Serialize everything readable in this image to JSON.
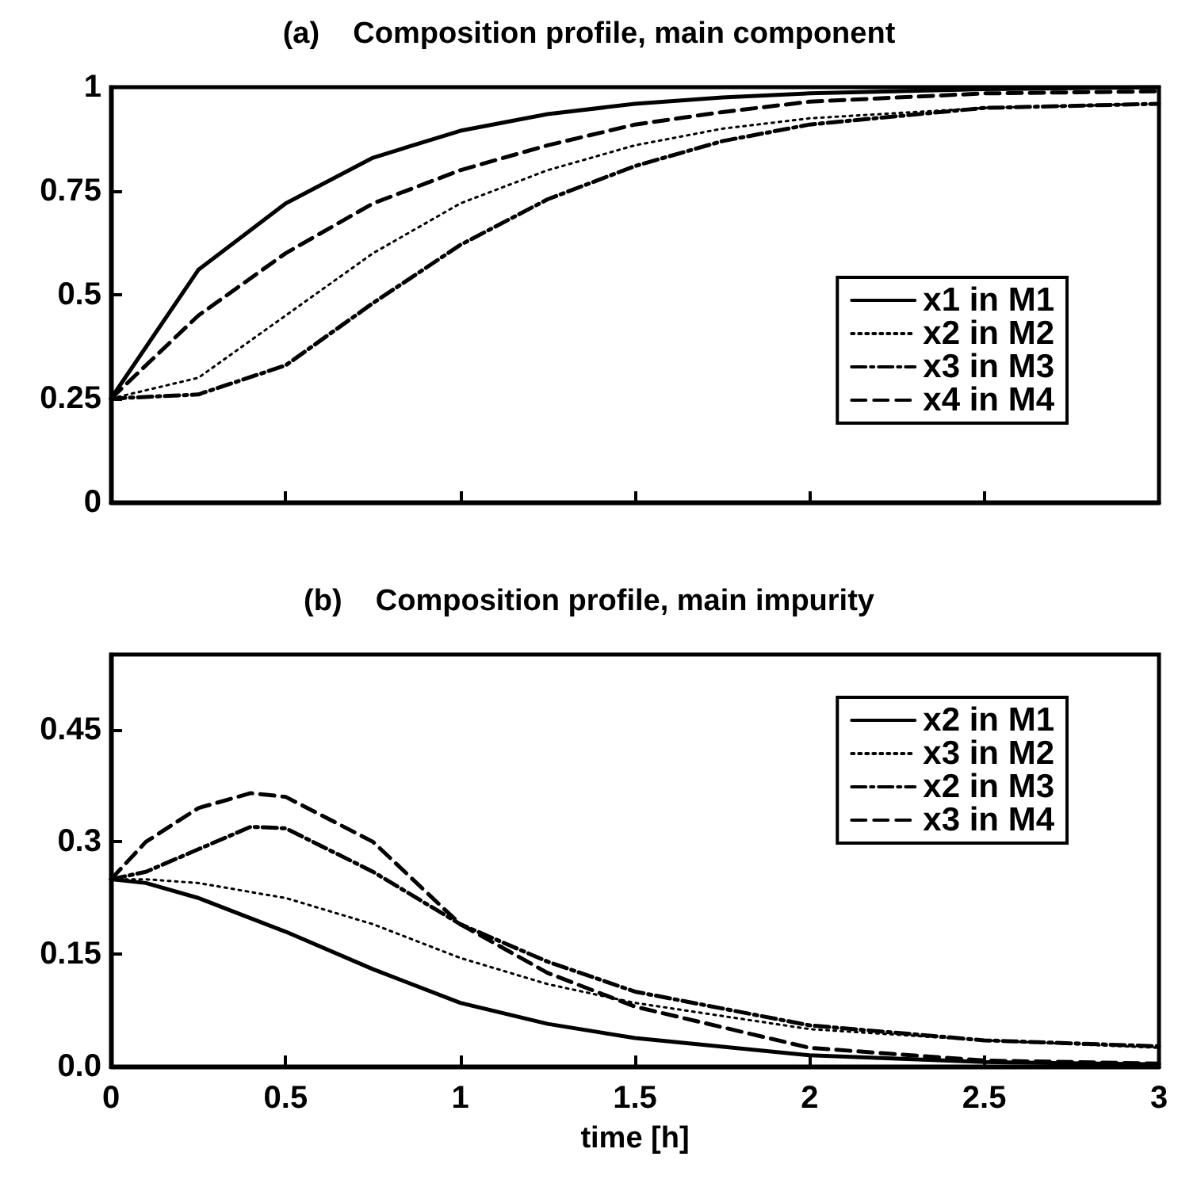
{
  "chart_data": [
    {
      "type": "line",
      "title": "(a)    Composition profile, main component",
      "x": [
        0,
        0.25,
        0.5,
        0.75,
        1,
        1.25,
        1.5,
        1.75,
        2,
        2.5,
        3
      ],
      "series": [
        {
          "name": "x1 in M1",
          "color": "#000000",
          "line_style": "solid",
          "values": [
            0.25,
            0.56,
            0.72,
            0.83,
            0.895,
            0.935,
            0.96,
            0.975,
            0.985,
            0.995,
            1.0
          ]
        },
        {
          "name": "x2 in M2",
          "color": "#000000",
          "line_style": "dotted",
          "values": [
            0.25,
            0.3,
            0.45,
            0.6,
            0.72,
            0.8,
            0.86,
            0.9,
            0.925,
            0.95,
            0.96
          ]
        },
        {
          "name": "x3 in M3",
          "color": "#000000",
          "line_style": "dashdot",
          "values": [
            0.25,
            0.26,
            0.33,
            0.48,
            0.62,
            0.73,
            0.81,
            0.87,
            0.91,
            0.95,
            0.96
          ]
        },
        {
          "name": "x4 in M4",
          "color": "#000000",
          "line_style": "dashed",
          "values": [
            0.25,
            0.45,
            0.6,
            0.72,
            0.8,
            0.86,
            0.91,
            0.94,
            0.965,
            0.985,
            0.99
          ]
        }
      ],
      "xlim": [
        0,
        3
      ],
      "xticks": [
        0,
        0.5,
        1,
        1.5,
        2,
        2.5,
        3
      ],
      "ylim": [
        0,
        1
      ],
      "yticks": [
        0,
        0.25,
        0.5,
        0.75,
        1
      ],
      "tick_labels": "y",
      "legend": "right",
      "grid": false,
      "marker": "none"
    },
    {
      "type": "line",
      "title": "(b)    Composition profile, main impurity",
      "xlabel": "time [h]",
      "x": [
        0,
        0.1,
        0.25,
        0.4,
        0.5,
        0.75,
        1,
        1.25,
        1.5,
        2,
        2.5,
        3
      ],
      "series": [
        {
          "name": "x2 in M1",
          "color": "#000000",
          "line_style": "solid",
          "values": [
            0.25,
            0.245,
            0.225,
            0.198,
            0.18,
            0.13,
            0.085,
            0.057,
            0.038,
            0.015,
            0.006,
            0.003
          ]
        },
        {
          "name": "x3 in M2",
          "color": "#000000",
          "line_style": "dotted",
          "values": [
            0.25,
            0.25,
            0.245,
            0.233,
            0.225,
            0.19,
            0.145,
            0.11,
            0.085,
            0.05,
            0.035,
            0.025
          ]
        },
        {
          "name": "x2 in M3",
          "color": "#000000",
          "line_style": "dashdot",
          "values": [
            0.25,
            0.26,
            0.29,
            0.32,
            0.318,
            0.26,
            0.19,
            0.14,
            0.1,
            0.055,
            0.035,
            0.027
          ]
        },
        {
          "name": "x3 in M4",
          "color": "#000000",
          "line_style": "dashed",
          "values": [
            0.25,
            0.3,
            0.345,
            0.365,
            0.36,
            0.3,
            0.19,
            0.125,
            0.08,
            0.025,
            0.008,
            0.004
          ]
        }
      ],
      "xlim": [
        0,
        3
      ],
      "xticks": [
        0,
        0.5,
        1,
        1.5,
        2,
        2.5,
        3
      ],
      "ylim": [
        0,
        0.55
      ],
      "yticks": [
        {
          "value": 0,
          "label": "0.0"
        },
        0.15,
        0.3,
        0.45
      ],
      "legend": "top right",
      "grid": false,
      "marker": "none"
    }
  ]
}
